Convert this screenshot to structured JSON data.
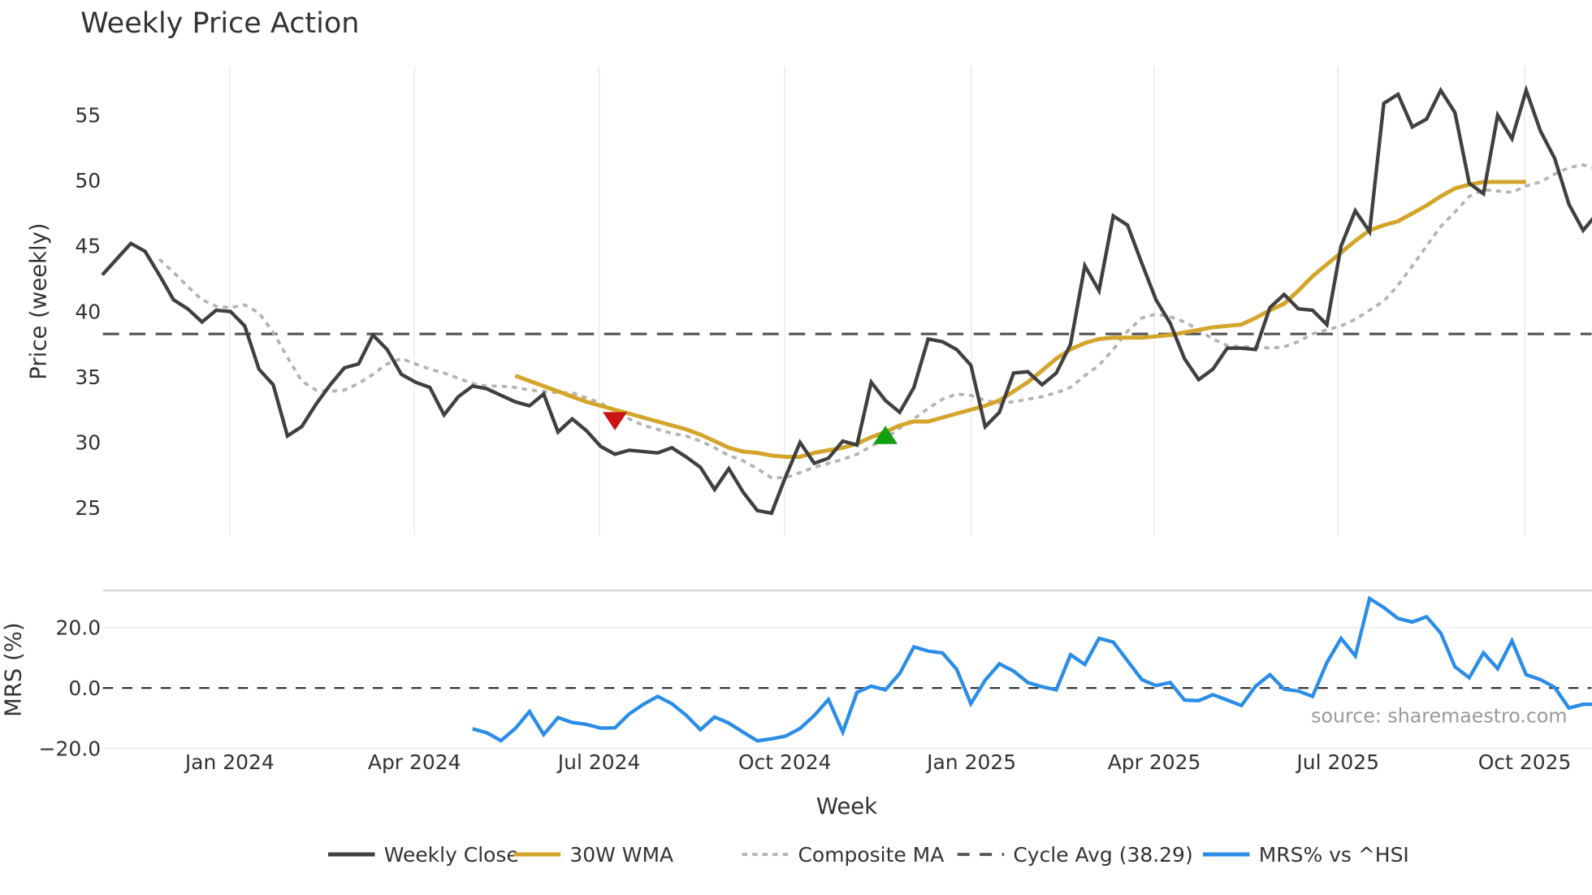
{
  "chart_data": {
    "type": "line",
    "title": "Weekly Price Action",
    "panels": [
      {
        "name": "price",
        "ylabel": "Price (weekly)",
        "yticks": [
          25,
          30,
          35,
          40,
          45,
          50,
          55
        ],
        "ylim": [
          22.5,
          58.5
        ],
        "grid": "vertical"
      },
      {
        "name": "mrs",
        "ylabel": "MRS (%)",
        "yticks": [
          -20.0,
          0.0,
          20.0
        ],
        "ytick_labels": [
          "−20.0",
          "0.0",
          "20.0"
        ],
        "ylim": [
          -22,
          32
        ],
        "grid": "horizontal"
      }
    ],
    "xlabel": "Week",
    "x_tick_labels": [
      "Jan 2024",
      "Apr 2024",
      "Jul 2024",
      "Oct 2024",
      "Jan 2025",
      "Apr 2025",
      "Jul 2025",
      "Oct 2025"
    ],
    "x_start_week_index": 0,
    "weeks_per_tick": 13,
    "first_tick_week": 9,
    "series": [
      {
        "name": "Weekly Close",
        "color": "#404040",
        "style": "solid",
        "start_week": 0,
        "values": [
          42.8,
          44.0,
          45.2,
          44.6,
          42.8,
          40.9,
          40.2,
          39.2,
          40.1,
          40.0,
          38.9,
          35.6,
          34.4,
          30.5,
          31.2,
          32.9,
          34.4,
          35.7,
          36.0,
          38.2,
          37.1,
          35.2,
          34.6,
          34.2,
          32.1,
          33.5,
          34.3,
          34.1,
          33.6,
          33.1,
          32.8,
          33.7,
          30.8,
          31.8,
          30.9,
          29.7,
          29.1,
          29.4,
          29.3,
          29.2,
          29.6,
          28.9,
          28.1,
          26.4,
          28.0,
          26.2,
          24.8,
          24.6,
          27.4,
          30.0,
          28.4,
          28.8,
          30.1,
          29.8,
          34.6,
          33.2,
          32.3,
          34.2,
          37.9,
          37.7,
          37.1,
          35.9,
          31.2,
          32.3,
          35.3,
          35.4,
          34.4,
          35.3,
          37.5,
          43.5,
          41.6,
          47.3,
          46.6,
          43.7,
          40.9,
          39.1,
          36.4,
          34.8,
          35.6,
          37.2,
          37.2,
          37.1,
          40.3,
          41.3,
          40.2,
          40.1,
          39.0,
          45.0,
          47.7,
          46.1,
          55.9,
          56.6,
          54.1,
          54.7,
          56.9,
          55.2,
          49.8,
          49.0,
          55.0,
          53.2,
          56.9,
          53.8,
          51.7,
          48.2,
          46.2,
          47.5,
          46.8
        ]
      },
      {
        "name": "30W WMA",
        "color": "#d4a52b",
        "style": "solid",
        "start_week": 29,
        "values": [
          35.1,
          34.7,
          34.3,
          33.9,
          33.5,
          33.1,
          32.8,
          32.5,
          32.2,
          31.9,
          31.6,
          31.3,
          31.0,
          30.6,
          30.1,
          29.6,
          29.3,
          29.2,
          29.0,
          28.9,
          28.9,
          29.2,
          29.4,
          29.6,
          29.9,
          30.4,
          30.8,
          31.3,
          31.6,
          31.6,
          31.9,
          32.2,
          32.5,
          32.8,
          33.2,
          33.9,
          34.6,
          35.5,
          36.4,
          37.1,
          37.6,
          37.9,
          38.0,
          38.0,
          38.0,
          38.1,
          38.2,
          38.4,
          38.6,
          38.8,
          38.9,
          39.0,
          39.5,
          40.1,
          40.6,
          41.6,
          42.7,
          43.6,
          44.5,
          45.4,
          46.2,
          46.6,
          46.9,
          47.5,
          48.1,
          48.8,
          49.4,
          49.7,
          49.9,
          49.9,
          49.9,
          49.9
        ]
      },
      {
        "name": "Composite MA",
        "color": "#b3b3b3",
        "style": "dotted",
        "start_week": 4,
        "values": [
          44.0,
          43.0,
          41.9,
          40.9,
          40.4,
          40.3,
          40.5,
          39.9,
          38.4,
          36.5,
          34.7,
          34.0,
          33.9,
          34.0,
          34.5,
          35.2,
          36.0,
          36.4,
          36.0,
          35.6,
          35.3,
          34.9,
          34.5,
          34.3,
          34.3,
          34.2,
          34.0,
          33.9,
          33.8,
          33.8,
          33.4,
          33.0,
          32.4,
          31.8,
          31.3,
          31.0,
          30.7,
          30.5,
          30.1,
          29.6,
          29.0,
          28.6,
          28.0,
          27.3,
          27.3,
          27.7,
          28.1,
          28.4,
          28.7,
          29.1,
          29.7,
          30.3,
          31.1,
          31.8,
          32.6,
          33.3,
          33.7,
          33.6,
          33.2,
          33.0,
          33.1,
          33.3,
          33.5,
          33.8,
          34.2,
          35.1,
          35.9,
          37.1,
          38.5,
          39.5,
          39.8,
          39.6,
          39.2,
          38.6,
          37.9,
          37.4,
          37.3,
          37.3,
          37.2,
          37.3,
          37.7,
          38.3,
          38.6,
          38.9,
          39.4,
          40.1,
          40.8,
          42.0,
          43.5,
          45.0,
          46.5,
          47.6,
          48.8,
          49.3,
          49.2,
          49.1,
          49.6,
          49.9,
          50.5,
          51.0,
          51.2,
          50.9,
          50.2,
          49.6,
          49.3
        ]
      },
      {
        "name": "Cycle Avg (38.29)",
        "color": "#555555",
        "style": "dashed",
        "value": 38.29
      },
      {
        "name": "MRS% vs ^HSI",
        "color": "#2b8de6",
        "style": "solid",
        "panel": "mrs",
        "start_week": 26,
        "values": [
          -13.5,
          -14.8,
          -17.4,
          -13.4,
          -7.8,
          -15.4,
          -9.8,
          -11.4,
          -12.0,
          -13.3,
          -13.2,
          -8.6,
          -5.4,
          -2.8,
          -5.2,
          -9.0,
          -13.8,
          -9.6,
          -11.6,
          -14.6,
          -17.5,
          -16.8,
          -15.9,
          -13.4,
          -9.1,
          -3.8,
          -14.6,
          -1.4,
          0.6,
          -0.6,
          4.8,
          13.6,
          12.2,
          11.6,
          6.2,
          -5.2,
          2.6,
          8.0,
          5.6,
          1.8,
          0.4,
          -0.6,
          11.0,
          7.8,
          16.4,
          15.2,
          9.0,
          2.8,
          0.8,
          1.8,
          -4.0,
          -4.2,
          -2.2,
          -4.0,
          -5.8,
          0.6,
          4.4,
          -0.4,
          -1.0,
          -2.8,
          8.4,
          16.4,
          10.6,
          29.6,
          26.6,
          23.0,
          21.8,
          23.6,
          18.2,
          7.0,
          3.4,
          11.6,
          6.4,
          15.6,
          4.4,
          2.8,
          0.2,
          -6.6,
          -5.4,
          -5.4
        ]
      }
    ],
    "markers": [
      {
        "type": "sell",
        "shape": "triangle-down",
        "color": "#cc1111",
        "week": 36,
        "value": 31.7
      },
      {
        "type": "buy",
        "shape": "triangle-up",
        "color": "#11a011",
        "week": 55,
        "value": 30.5
      }
    ],
    "legend_position": "bottom-center",
    "annotation": "source: sharemaestro.com"
  },
  "legend": {
    "items": [
      {
        "label": "Weekly Close",
        "color": "#404040",
        "style": "solid"
      },
      {
        "label": "30W WMA",
        "color": "#d4a52b",
        "style": "solid"
      },
      {
        "label": "Composite MA",
        "color": "#b3b3b3",
        "style": "dotted"
      },
      {
        "label": "Cycle Avg (38.29)",
        "color": "#555555",
        "style": "dashed"
      },
      {
        "label": "MRS% vs ^HSI",
        "color": "#2b8de6",
        "style": "solid"
      }
    ]
  },
  "labels": {
    "title": "Weekly Price Action",
    "price_ylabel": "Price (weekly)",
    "mrs_ylabel": "MRS (%)",
    "xlabel": "Week",
    "source": "source: sharemaestro.com"
  }
}
